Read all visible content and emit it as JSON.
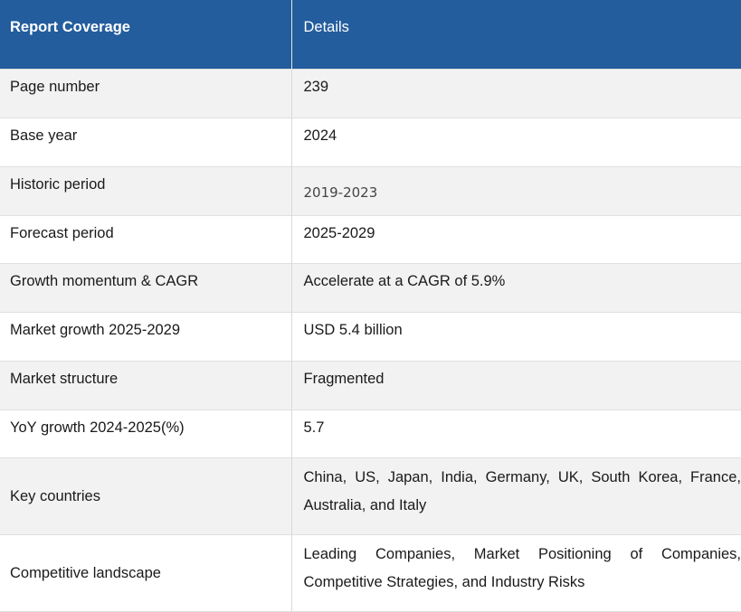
{
  "header": {
    "col1": "Report Coverage",
    "col2": "Details"
  },
  "rows": [
    {
      "label": "Page number",
      "value": "239"
    },
    {
      "label": "Base year",
      "value": "2024"
    },
    {
      "label": "Historic period",
      "value": "2019-2023"
    },
    {
      "label": "Forecast period",
      "value": "2025-2029"
    },
    {
      "label": "Growth momentum & CAGR",
      "value": "Accelerate at a CAGR of 5.9%"
    },
    {
      "label": "Market growth 2025-2029",
      "value": "USD 5.4 billion"
    },
    {
      "label": "Market structure",
      "value": "Fragmented"
    },
    {
      "label": "YoY growth 2024-2025(%)",
      "value": "5.7"
    },
    {
      "label": "Key countries",
      "value": "China, US, Japan, India, Germany, UK, South Korea, France, Australia, and Italy"
    },
    {
      "label": "Competitive landscape",
      "value": "Leading Companies, Market Positioning of Companies, Competitive Strategies, and Industry Risks"
    }
  ]
}
